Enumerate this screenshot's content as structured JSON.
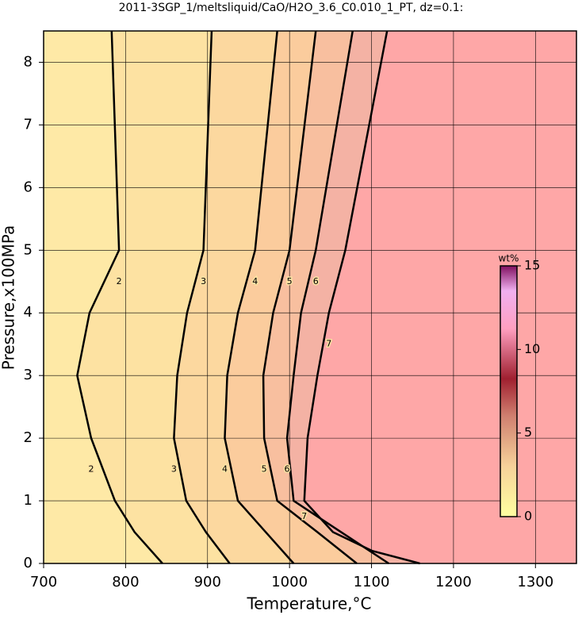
{
  "chart_data": {
    "type": "contour",
    "title": "2011-3SGP_1/meltsliquid/CaO/H2O_3.6_C0.010_1_PT, dz=0.1:",
    "x_label": "Temperature,°C",
    "y_label": "Pressure,x100MPa",
    "xlim": [
      700,
      1350
    ],
    "xticks": [
      700,
      800,
      900,
      1000,
      1100,
      1200,
      1300
    ],
    "ylim": [
      0,
      8.5
    ],
    "yticks": [
      0,
      1,
      2,
      3,
      4,
      5,
      6,
      7,
      8
    ],
    "grid": true,
    "contours": [
      {
        "level": 2,
        "x": [
          845,
          811,
          787,
          758,
          741,
          756,
          792,
          783
        ],
        "y": [
          0,
          0.5,
          1,
          2,
          3,
          4,
          5,
          8.5
        ]
      },
      {
        "level": 3,
        "x": [
          927,
          898,
          874,
          859,
          863,
          875,
          895,
          905
        ],
        "y": [
          0,
          0.5,
          1,
          2,
          3,
          4,
          5,
          8.5
        ]
      },
      {
        "level": 4,
        "x": [
          1005,
          971,
          937,
          921,
          924,
          937,
          958,
          985
        ],
        "y": [
          0,
          0.5,
          1,
          2,
          3,
          4,
          5,
          8.5
        ]
      },
      {
        "level": 5,
        "x": [
          1082,
          1034,
          985,
          969,
          968,
          980,
          1000,
          1032
        ],
        "y": [
          0,
          0.5,
          1,
          2,
          3,
          4,
          5,
          8.5
        ]
      },
      {
        "level": 6,
        "x": [
          1121,
          1063,
          1005,
          997,
          1005,
          1014,
          1032,
          1077
        ],
        "y": [
          0,
          0.5,
          1,
          2,
          3,
          4,
          5,
          8.5
        ]
      },
      {
        "level": 7,
        "x": [
          1159,
          1101,
          1053,
          1018,
          1022,
          1034,
          1048,
          1068,
          1119
        ],
        "y": [
          0,
          0.2,
          0.5,
          1,
          2,
          3,
          4,
          5,
          8.5
        ]
      }
    ],
    "colorbar": {
      "label": "wt%",
      "lim": [
        0,
        15
      ],
      "ticks": [
        0,
        5,
        10,
        15
      ]
    }
  }
}
